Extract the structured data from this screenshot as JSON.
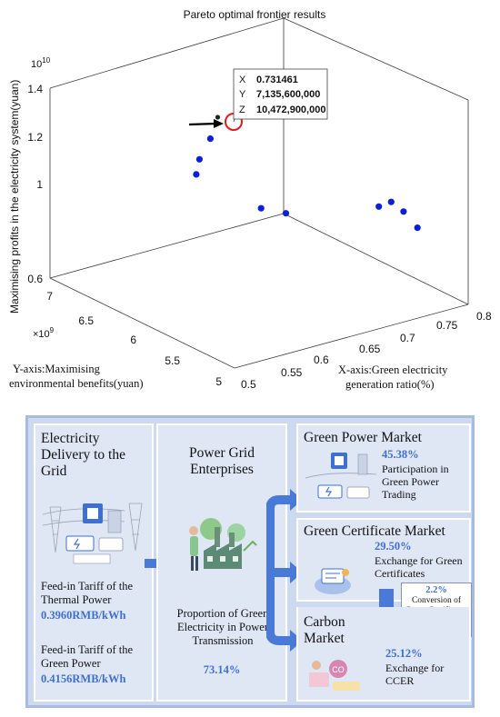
{
  "chart_data": {
    "type": "scatter3d",
    "title": "Pareto optimal frontier results",
    "xlabel": "X-axis:Green electricity generation ratio(%)",
    "ylabel": "Y-axis:Maximising environmental benefits(yuan)",
    "zlabel": "Maximising profits in the electricity system(yuan)",
    "xlim": [
      0.5,
      0.8
    ],
    "ylim": [
      5000000000,
      7000000000
    ],
    "zlim": [
      6000000000,
      14000000000
    ],
    "x_ticks": [
      "0.5",
      "0.55",
      "0.6",
      "0.65",
      "0.7",
      "0.75",
      "0.8"
    ],
    "y_ticks": [
      "5",
      "5.5",
      "6",
      "6.5",
      "7"
    ],
    "z_ticks": [
      "0.6",
      "0.8",
      "1",
      "1.2",
      "1.4"
    ],
    "y_exponent": "×10^9",
    "z_exponent": "10^10",
    "points": [
      {
        "x": 0.731461,
        "y": 7135600000,
        "z": 10472900000
      },
      {
        "x": 0.7,
        "y": 6950000000,
        "z": 10200000000
      },
      {
        "x": 0.68,
        "y": 6900000000,
        "z": 9600000000
      },
      {
        "x": 0.67,
        "y": 6850000000,
        "z": 9150000000
      },
      {
        "x": 0.7,
        "y": 6400000000,
        "z": 8300000000
      },
      {
        "x": 0.72,
        "y": 6300000000,
        "z": 8100000000
      },
      {
        "x": 0.78,
        "y": 5800000000,
        "z": 8800000000
      },
      {
        "x": 0.79,
        "y": 5750000000,
        "z": 9000000000
      },
      {
        "x": 0.8,
        "y": 5700000000,
        "z": 8600000000
      },
      {
        "x": 0.8,
        "y": 5550000000,
        "z": 8200000000
      }
    ],
    "datatip": {
      "x_label": "X",
      "x_value": "0.731461",
      "y_label": "Y",
      "y_value": "7,135,600,000",
      "z_label": "Z",
      "z_value": "10,472,900,000"
    },
    "colors": {
      "points": "#0b1fd6",
      "highlight": "#e21a1a"
    }
  },
  "diagram": {
    "col1": {
      "title": "Electricity Delivery to the Grid",
      "thermal_label": "Feed-in Tariff of the Thermal Power",
      "thermal_value": "0.3960RMB/kWh",
      "green_label": "Feed-in Tariff of the Green Power",
      "green_value": "0.4156RMB/kWh"
    },
    "col2": {
      "title": "Power Grid Enterprises",
      "label": "Proportion of Green Electricity in Power Transmission",
      "value": "73.14%"
    },
    "gpm": {
      "title": "Green Power Market",
      "value": "45.38%",
      "label": "Participation in Green Power Trading"
    },
    "gcm": {
      "title": "Green Certificate Market",
      "value": "29.50%",
      "label": "Exchange for Green Certificates"
    },
    "ccer_note": {
      "value": "2.2%",
      "label": "Conversion of Green Certificates into CCERs"
    },
    "cm": {
      "title": "Carbon Market",
      "value": "25.12%",
      "label": "Exchange for CCER"
    },
    "colors": {
      "panel": "#cdd9ee",
      "box": "#dfe7f5",
      "accent": "#3f6fcf",
      "arrow": "#4a7ad8"
    }
  }
}
